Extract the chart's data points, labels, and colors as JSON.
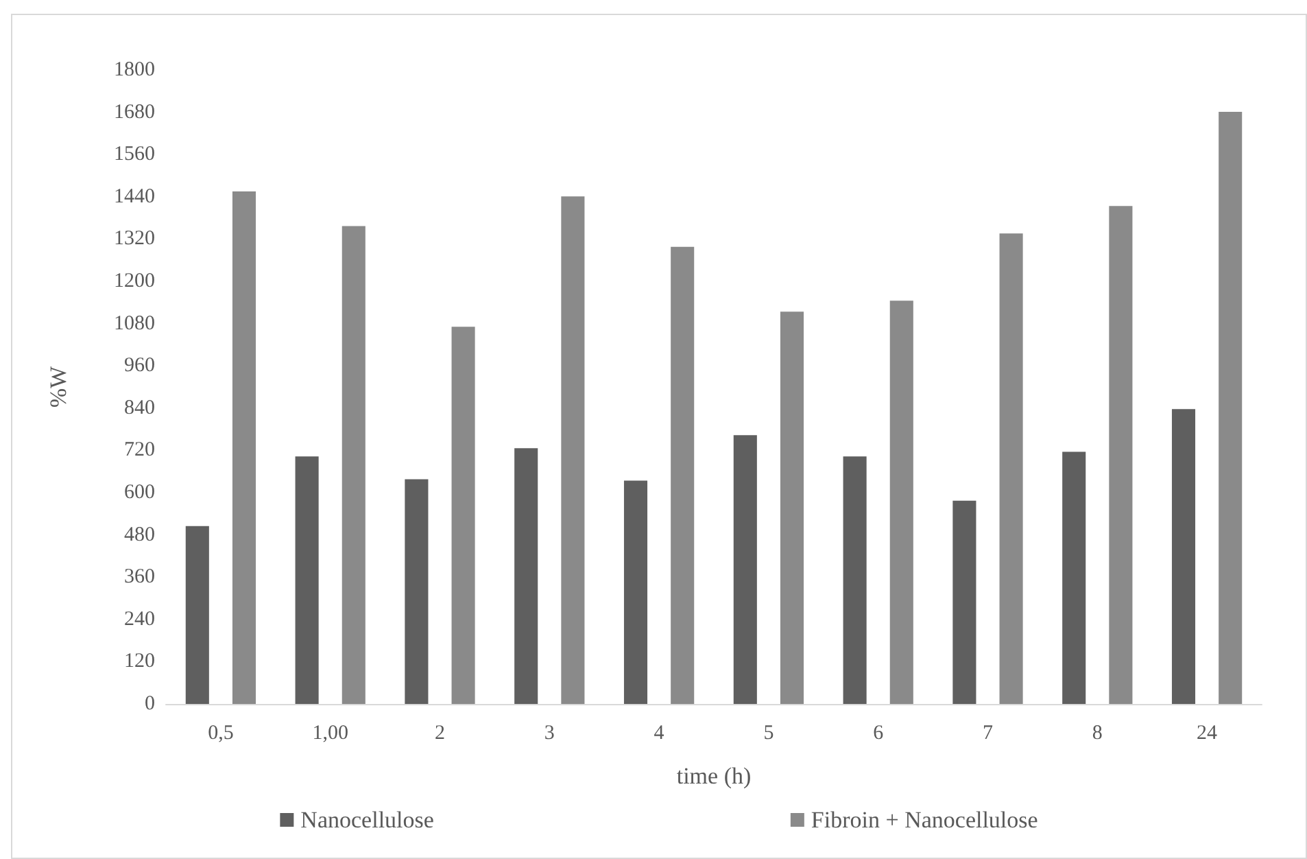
{
  "chart_data": {
    "type": "bar",
    "xlabel": "time (h)",
    "ylabel": "%W",
    "categories": [
      "0,5",
      "1,00",
      "2",
      "3",
      "4",
      "5",
      "6",
      "7",
      "8",
      "24"
    ],
    "series": [
      {
        "name": "Nanocellulose",
        "color": "#5f5f5f",
        "values": [
          505,
          703,
          638,
          726,
          634,
          763,
          703,
          577,
          716,
          837
        ]
      },
      {
        "color": "#a5a5a5",
        "values": [
          null,
          0,
          0,
          0,
          null,
          null,
          null,
          null,
          null,
          0
        ]
      },
      {
        "name": "Fibroin + Nanocellulose",
        "color": "#8a8a8a",
        "values": [
          1455,
          1357,
          1071,
          1441,
          1298,
          1114,
          1145,
          1336,
          1414,
          1681
        ]
      }
    ],
    "ylim": [
      0,
      1800
    ],
    "yticks": [
      0,
      120,
      240,
      360,
      480,
      600,
      720,
      840,
      960,
      1080,
      1200,
      1320,
      1440,
      1560,
      1680,
      1800
    ],
    "grid": false,
    "legend": "bottom"
  }
}
